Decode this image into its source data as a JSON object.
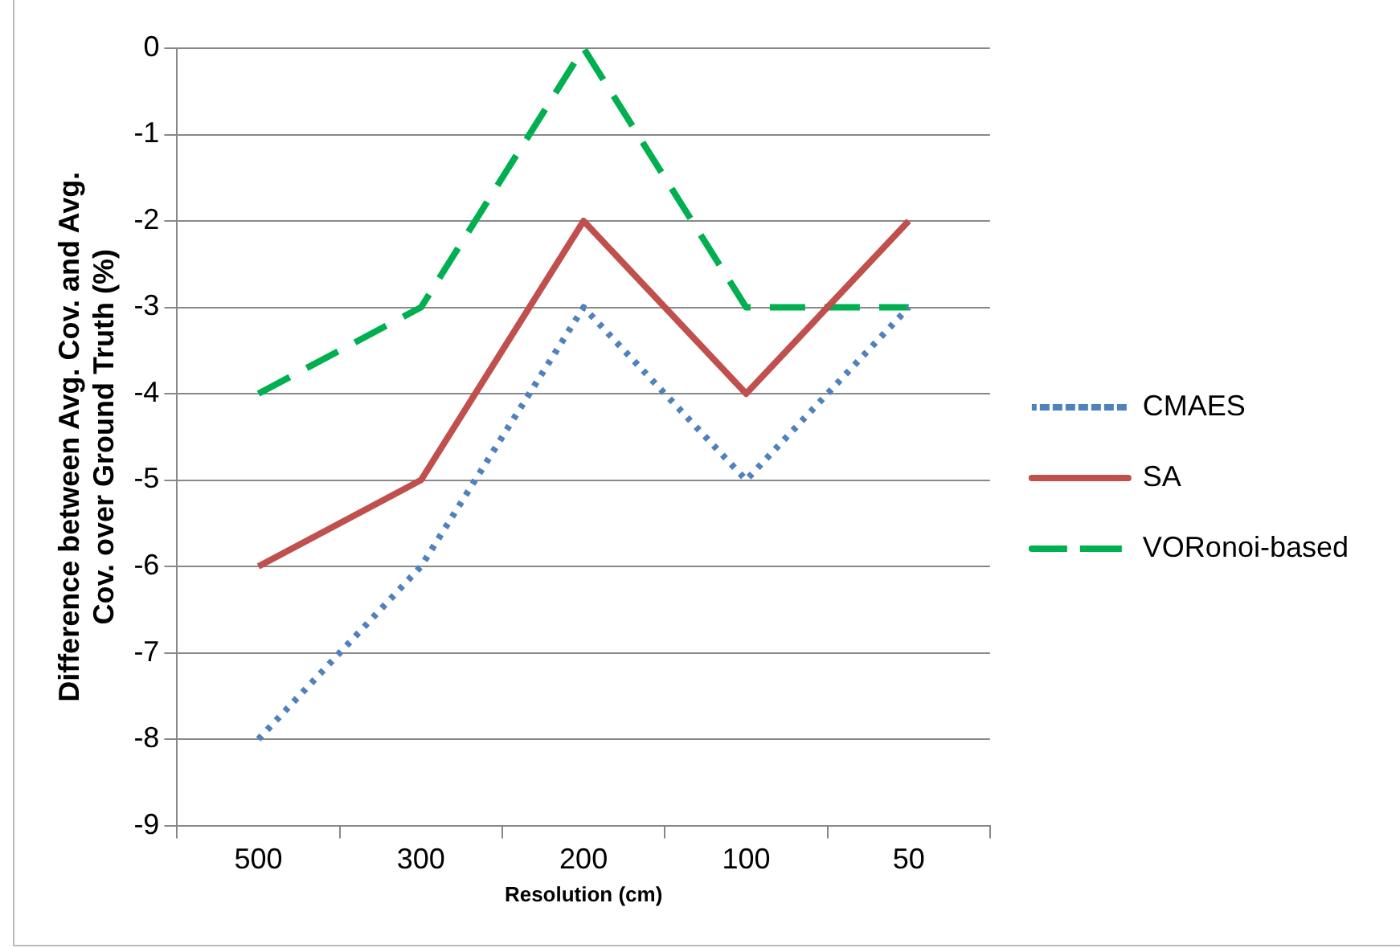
{
  "chart_data": {
    "type": "line",
    "xlabel": "Resolution (cm)",
    "ylabel": "Difference between Avg. Cov. and Avg. Cov. over Ground Truth (%)",
    "categories": [
      "500",
      "300",
      "200",
      "100",
      "50"
    ],
    "series": [
      {
        "name": "CMAES",
        "color": "#4f81bd",
        "line_style": "dotted",
        "values": [
          -8,
          -6,
          -3,
          -5,
          -3
        ]
      },
      {
        "name": "SA",
        "color": "#c0504d",
        "line_style": "solid",
        "values": [
          -6,
          -5,
          -2,
          -4,
          -2
        ]
      },
      {
        "name": "VORonoi-based",
        "color": "#00b050",
        "line_style": "dashed",
        "values": [
          -4,
          -3,
          0,
          -3,
          -3
        ]
      }
    ],
    "ylim": [
      -9,
      0
    ],
    "yticks": [
      -9,
      -8,
      -7,
      -6,
      -5,
      -4,
      -3,
      -2,
      -1,
      0
    ],
    "grid": "y",
    "legend": "right",
    "marker": "none"
  }
}
